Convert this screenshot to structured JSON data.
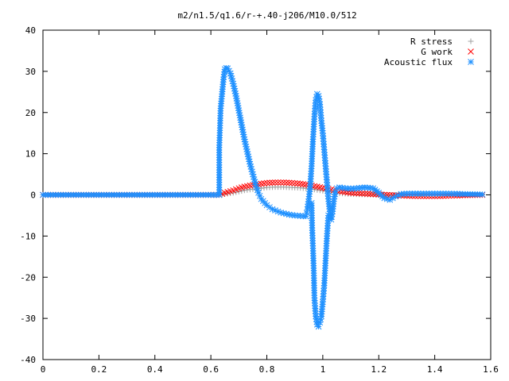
{
  "chart_data": {
    "type": "scatter",
    "title": "m2/n1.5/q1.6/r-+.40-j206/M10.0/512",
    "xlabel": "",
    "ylabel": "",
    "xlim": [
      0,
      1.6
    ],
    "ylim": [
      -40,
      40
    ],
    "x_ticks": [
      "0",
      "0.2",
      "0.4",
      "0.6",
      "0.8",
      "1",
      "1.2",
      "1.4",
      "1.6"
    ],
    "y_ticks": [
      "40",
      "30",
      "20",
      "10",
      "0",
      "-10",
      "-20",
      "-30",
      "-40"
    ],
    "grid": false,
    "legend_position": "top-right",
    "series": [
      {
        "name": "R stress",
        "marker": "plus",
        "color": "#a0a0a0",
        "points": [
          [
            0.0,
            0
          ],
          [
            0.1,
            0
          ],
          [
            0.2,
            0
          ],
          [
            0.3,
            0
          ],
          [
            0.4,
            0
          ],
          [
            0.5,
            0
          ],
          [
            0.6,
            0
          ],
          [
            0.63,
            0
          ],
          [
            0.65,
            0.2
          ],
          [
            0.68,
            0.5
          ],
          [
            0.7,
            0.8
          ],
          [
            0.72,
            1.1
          ],
          [
            0.75,
            1.4
          ],
          [
            0.78,
            1.6
          ],
          [
            0.8,
            1.8
          ],
          [
            0.83,
            1.9
          ],
          [
            0.86,
            1.9
          ],
          [
            0.89,
            1.8
          ],
          [
            0.92,
            1.7
          ],
          [
            0.95,
            1.5
          ],
          [
            0.98,
            1.2
          ],
          [
            1.0,
            1.0
          ],
          [
            1.03,
            0.7
          ],
          [
            1.06,
            0.4
          ],
          [
            1.1,
            0.2
          ],
          [
            1.15,
            0.1
          ],
          [
            1.2,
            0
          ],
          [
            1.3,
            0
          ],
          [
            1.4,
            0
          ],
          [
            1.5,
            0
          ],
          [
            1.57,
            0
          ]
        ]
      },
      {
        "name": "G work",
        "marker": "cross",
        "color": "#ff0000",
        "points": [
          [
            0.0,
            0
          ],
          [
            0.1,
            0
          ],
          [
            0.2,
            0
          ],
          [
            0.3,
            0
          ],
          [
            0.4,
            0
          ],
          [
            0.5,
            0
          ],
          [
            0.6,
            0
          ],
          [
            0.63,
            0
          ],
          [
            0.65,
            0.5
          ],
          [
            0.68,
            1.1
          ],
          [
            0.7,
            1.6
          ],
          [
            0.72,
            2.0
          ],
          [
            0.75,
            2.4
          ],
          [
            0.78,
            2.7
          ],
          [
            0.8,
            2.9
          ],
          [
            0.83,
            3.0
          ],
          [
            0.86,
            3.0
          ],
          [
            0.89,
            2.9
          ],
          [
            0.92,
            2.7
          ],
          [
            0.95,
            2.4
          ],
          [
            0.98,
            2.0
          ],
          [
            1.0,
            1.7
          ],
          [
            1.03,
            1.3
          ],
          [
            1.06,
            0.9
          ],
          [
            1.1,
            0.5
          ],
          [
            1.15,
            0.3
          ],
          [
            1.2,
            0.1
          ],
          [
            1.25,
            -0.1
          ],
          [
            1.3,
            -0.2
          ],
          [
            1.35,
            -0.3
          ],
          [
            1.4,
            -0.3
          ],
          [
            1.45,
            -0.2
          ],
          [
            1.5,
            -0.1
          ],
          [
            1.57,
            0
          ]
        ]
      },
      {
        "name": "Acoustic flux",
        "marker": "star",
        "color": "#1e90ff",
        "points": [
          [
            0.0,
            0
          ],
          [
            0.1,
            0
          ],
          [
            0.2,
            0
          ],
          [
            0.3,
            0
          ],
          [
            0.4,
            0
          ],
          [
            0.5,
            0
          ],
          [
            0.6,
            0
          ],
          [
            0.63,
            0
          ],
          [
            0.63,
            11.5
          ],
          [
            0.635,
            21
          ],
          [
            0.64,
            24.5
          ],
          [
            0.645,
            28
          ],
          [
            0.65,
            30.5
          ],
          [
            0.655,
            30.8
          ],
          [
            0.66,
            30.7
          ],
          [
            0.67,
            29.5
          ],
          [
            0.68,
            27
          ],
          [
            0.69,
            24
          ],
          [
            0.7,
            20.5
          ],
          [
            0.71,
            17
          ],
          [
            0.72,
            13.5
          ],
          [
            0.73,
            10.5
          ],
          [
            0.74,
            7.5
          ],
          [
            0.75,
            5
          ],
          [
            0.76,
            2.5
          ],
          [
            0.77,
            0.5
          ],
          [
            0.78,
            -1
          ],
          [
            0.8,
            -2.5
          ],
          [
            0.82,
            -3.5
          ],
          [
            0.85,
            -4.3
          ],
          [
            0.88,
            -4.8
          ],
          [
            0.9,
            -5
          ],
          [
            0.92,
            -5.1
          ],
          [
            0.94,
            -5.2
          ],
          [
            0.945,
            -3.5
          ],
          [
            0.95,
            -1
          ],
          [
            0.955,
            2
          ],
          [
            0.96,
            7
          ],
          [
            0.965,
            13.5
          ],
          [
            0.97,
            19
          ],
          [
            0.975,
            23
          ],
          [
            0.98,
            24.5
          ],
          [
            0.985,
            24
          ],
          [
            0.99,
            22
          ],
          [
            0.995,
            18
          ],
          [
            1.0,
            15
          ],
          [
            1.005,
            11
          ],
          [
            1.01,
            7
          ],
          [
            1.015,
            3
          ],
          [
            1.02,
            -1
          ],
          [
            1.025,
            -4
          ],
          [
            1.03,
            -6
          ],
          [
            1.035,
            -4
          ],
          [
            1.04,
            -1
          ],
          [
            1.045,
            0.8
          ],
          [
            1.05,
            1.6
          ],
          [
            1.06,
            1.8
          ],
          [
            1.08,
            1.6
          ],
          [
            1.1,
            1.5
          ],
          [
            1.12,
            1.6
          ],
          [
            1.15,
            1.8
          ],
          [
            1.18,
            1.6
          ],
          [
            1.2,
            0.5
          ],
          [
            1.22,
            -0.8
          ],
          [
            1.24,
            -1.2
          ],
          [
            1.26,
            -0.4
          ],
          [
            1.28,
            0.2
          ],
          [
            1.3,
            0.3
          ],
          [
            1.35,
            0.3
          ],
          [
            1.4,
            0.3
          ],
          [
            1.45,
            0.3
          ],
          [
            1.5,
            0.2
          ],
          [
            1.57,
            0.1
          ],
          [
            0.96,
            -2
          ],
          [
            0.962,
            -8
          ],
          [
            0.965,
            -13
          ],
          [
            0.968,
            -19
          ],
          [
            0.97,
            -25
          ],
          [
            0.975,
            -29.5
          ],
          [
            0.98,
            -31.5
          ],
          [
            0.985,
            -32
          ],
          [
            0.99,
            -31
          ],
          [
            0.995,
            -29.5
          ],
          [
            1.0,
            -26
          ],
          [
            1.005,
            -22
          ],
          [
            1.01,
            -16
          ],
          [
            1.015,
            -10
          ],
          [
            1.02,
            -5
          ]
        ]
      }
    ]
  }
}
